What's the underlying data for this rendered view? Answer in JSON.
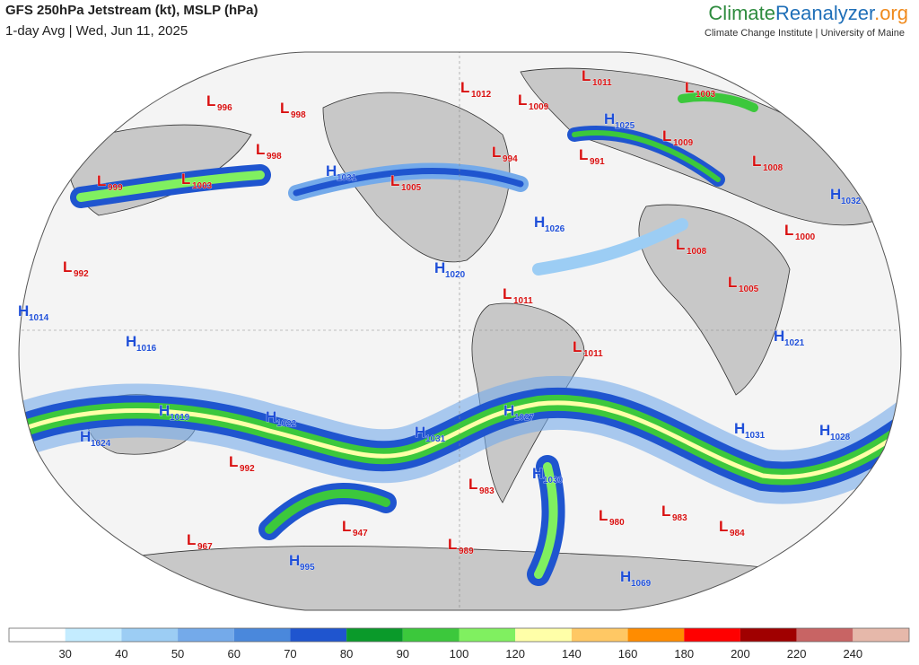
{
  "header": {
    "title": "GFS 250hPa Jetstream (kt), MSLP (hPa)",
    "subtitle": "1-day Avg | Wed, Jun 11, 2025",
    "brand": [
      "Climate",
      "Reanalyzer",
      ".org"
    ],
    "tagline": "Climate Change Institute | University of Maine"
  },
  "map": {
    "centers": [
      {
        "type": "L",
        "value": 996
      },
      {
        "type": "L",
        "value": 998
      },
      {
        "type": "L",
        "value": 998
      },
      {
        "type": "L",
        "value": 999
      },
      {
        "type": "L",
        "value": 1003
      },
      {
        "type": "H",
        "value": 1031
      },
      {
        "type": "L",
        "value": 1005
      },
      {
        "type": "L",
        "value": 1012
      },
      {
        "type": "L",
        "value": 1009
      },
      {
        "type": "L",
        "value": 1011
      },
      {
        "type": "L",
        "value": 1003
      },
      {
        "type": "H",
        "value": 1025
      },
      {
        "type": "L",
        "value": 1009
      },
      {
        "type": "L",
        "value": 994
      },
      {
        "type": "L",
        "value": 991
      },
      {
        "type": "L",
        "value": 1008
      },
      {
        "type": "H",
        "value": 1032
      },
      {
        "type": "H",
        "value": 1026
      },
      {
        "type": "L",
        "value": 1008
      },
      {
        "type": "L",
        "value": 1000
      },
      {
        "type": "L",
        "value": 992
      },
      {
        "type": "H",
        "value": 1020
      },
      {
        "type": "L",
        "value": 1005
      },
      {
        "type": "L",
        "value": 1011
      },
      {
        "type": "H",
        "value": 1014
      },
      {
        "type": "H",
        "value": 1016
      },
      {
        "type": "H",
        "value": 1021
      },
      {
        "type": "L",
        "value": 1011
      },
      {
        "type": "H",
        "value": 1019
      },
      {
        "type": "H",
        "value": 1022
      },
      {
        "type": "H",
        "value": 1027
      },
      {
        "type": "H",
        "value": 1031
      },
      {
        "type": "H",
        "value": 1024
      },
      {
        "type": "H",
        "value": 1031
      },
      {
        "type": "H",
        "value": 1028
      },
      {
        "type": "L",
        "value": 992
      },
      {
        "type": "L",
        "value": 983
      },
      {
        "type": "H",
        "value": 1030
      },
      {
        "type": "L",
        "value": 980
      },
      {
        "type": "L",
        "value": 983
      },
      {
        "type": "L",
        "value": 984
      },
      {
        "type": "L",
        "value": 947
      },
      {
        "type": "L",
        "value": 967
      },
      {
        "type": "L",
        "value": 989
      },
      {
        "type": "H",
        "value": 995
      },
      {
        "type": "H",
        "value": 1069
      }
    ],
    "colorbar": {
      "labels": [
        30,
        40,
        50,
        60,
        70,
        80,
        90,
        100,
        120,
        140,
        160,
        180,
        200,
        220,
        240
      ],
      "colors": [
        "#ffffff",
        "#c4ecff",
        "#9ccdf4",
        "#74aaea",
        "#4a88dc",
        "#1f55cf",
        "#0a9a2a",
        "#3cc83c",
        "#80f060",
        "#ffffa8",
        "#ffc864",
        "#ff8c00",
        "#ff0000",
        "#a00000",
        "#c86464",
        "#e6b8aa"
      ]
    }
  }
}
